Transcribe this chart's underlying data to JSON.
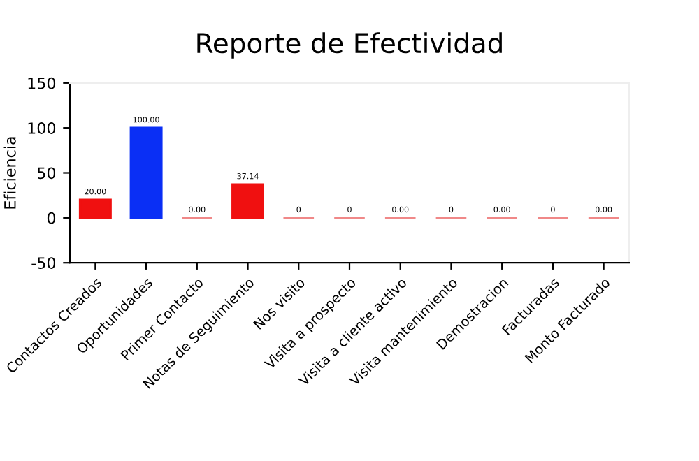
{
  "chart_data": {
    "type": "bar",
    "title": "Reporte de Efectividad",
    "ylabel": "Eficiencia",
    "categories": [
      "Contactos Creados",
      "Oportunidades",
      "Primer Contacto",
      "Notas de Seguimiento",
      "Nos visito",
      "Visita a prospecto",
      "Visita a cliente activo",
      "Visita mantenimiento",
      "Demostracion",
      "Facturadas",
      "Monto Facturado"
    ],
    "values": [
      20,
      100,
      0,
      37.14,
      0,
      0,
      0,
      0,
      0,
      0,
      0
    ],
    "colors": [
      "#f01010",
      "#0a2ff5",
      "#f08888",
      "#f01010",
      "#f08888",
      "#f08888",
      "#f08888",
      "#f08888",
      "#f08888",
      "#f08888",
      "#f08888"
    ],
    "value_labels": [
      "20.00",
      "100.00",
      "0.00",
      "37.14",
      "0",
      "0",
      "0.00",
      "0",
      "0.00",
      "0",
      "0.00"
    ],
    "ylim": [
      -50,
      150
    ],
    "yticks": [
      -50,
      0,
      50,
      100,
      150
    ],
    "grid": false,
    "legend": false
  }
}
